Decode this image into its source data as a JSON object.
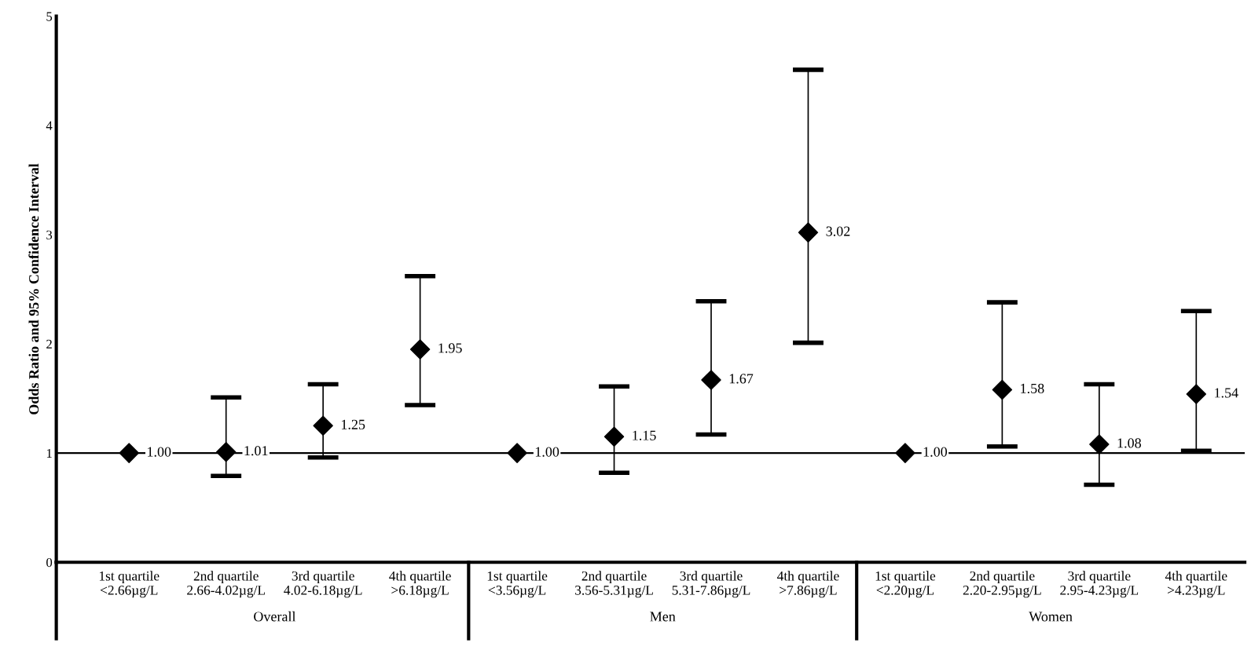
{
  "chart_data": {
    "type": "scatter",
    "ylabel": "Odds Ratio and 95% Confidence Interval",
    "categories": [
      "1st quartile\n<2.66µg/L",
      "2nd quartile\n2.66-4.02µg/L",
      "3rd quartile\n4.02-6.18µg/L",
      "4th quartile\n>6.18µg/L",
      "1st quartile\n<3.56µg/L",
      "2nd quartile\n3.56-5.31µg/L",
      "3rd quartile\n5.31-7.86µg/L",
      "4th quartile\n>7.86µg/L",
      "1st quartile\n<2.20µg/L",
      "2nd quartile\n2.20-2.95µg/L",
      "3rd quartile\n2.95-4.23µg/L",
      "4th quartile\n>4.23µg/L"
    ],
    "series": [
      {
        "color": "#000000",
        "values": [
          1.0,
          1.01,
          1.25,
          1.95,
          1.0,
          1.15,
          1.67,
          3.02,
          1.0,
          1.58,
          1.08,
          1.54
        ],
        "errors": [
          null,
          [
            0.79,
            1.51
          ],
          [
            0.96,
            1.63
          ],
          [
            1.44,
            2.62
          ],
          null,
          [
            0.82,
            1.61
          ],
          [
            1.17,
            2.39
          ],
          [
            2.01,
            4.51
          ],
          null,
          [
            1.06,
            2.38
          ],
          [
            0.71,
            1.63
          ],
          [
            1.02,
            2.3
          ]
        ],
        "value_labels": [
          "1.00",
          "1.01",
          "1.25",
          "1.95",
          "1.00",
          "1.15",
          "1.67",
          "3.02",
          "1.00",
          "1.58",
          "1.08",
          "1.54"
        ]
      }
    ],
    "ylim": [
      0,
      5
    ],
    "yticks": [
      0,
      1,
      2,
      3,
      4,
      5
    ],
    "marker": "diamond",
    "grid": false,
    "legend": false,
    "ref_lines": [
      {
        "axis": "y",
        "value": 1,
        "color": "#000000"
      }
    ],
    "annotations": [
      "Overall",
      "Men",
      "Women"
    ]
  }
}
